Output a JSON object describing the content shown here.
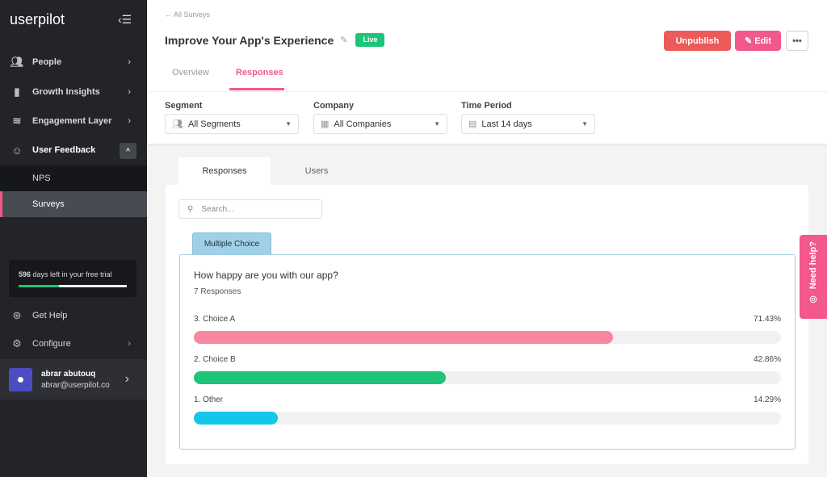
{
  "sidebar": {
    "logo": "userpilot",
    "items": [
      {
        "label": "People",
        "icon": "people-icon"
      },
      {
        "label": "Growth Insights",
        "icon": "bar-chart-icon"
      },
      {
        "label": "Engagement Layer",
        "icon": "layers-icon"
      },
      {
        "label": "User Feedback",
        "icon": "smiley-icon"
      }
    ],
    "sub_items": [
      "NPS",
      "Surveys"
    ],
    "active_sub": "Surveys",
    "trial": {
      "days": "596",
      "text": "days left in your free trial",
      "progress": 0.37
    },
    "get_help": "Get Help",
    "configure": "Configure",
    "user": {
      "name": "abrar abutouq",
      "email": "abrar@userpilot.co"
    }
  },
  "header": {
    "back": "All Surveys",
    "title": "Improve Your App's Experience",
    "status": "Live",
    "unpublish": "Unpublish",
    "edit": "Edit",
    "more": "•••",
    "tabs": [
      "Overview",
      "Responses"
    ],
    "active_tab": "Responses"
  },
  "filters": {
    "segment": {
      "label": "Segment",
      "value": "All Segments"
    },
    "company": {
      "label": "Company",
      "value": "All Companies"
    },
    "period": {
      "label": "Time Period",
      "value": "Last 14 days"
    }
  },
  "content": {
    "tabs": [
      "Responses",
      "Users"
    ],
    "search_placeholder": "Search...",
    "question_type": "Multiple Choice",
    "question": "How happy are you with our app?",
    "responses": "7 Responses",
    "choices": [
      {
        "label": "3. Choice A",
        "percent": "71.43%",
        "value": 71.43,
        "color": "#f9879f"
      },
      {
        "label": "2. Choice B",
        "percent": "42.86%",
        "value": 42.86,
        "color": "#1dc47a"
      },
      {
        "label": "1. Other",
        "percent": "14.29%",
        "value": 14.29,
        "color": "#14c6e8"
      }
    ]
  },
  "help": "Need help?",
  "colors": {
    "accent": "#f2588a",
    "unpublish": "#ec5a5a",
    "live": "#1dc47a"
  }
}
